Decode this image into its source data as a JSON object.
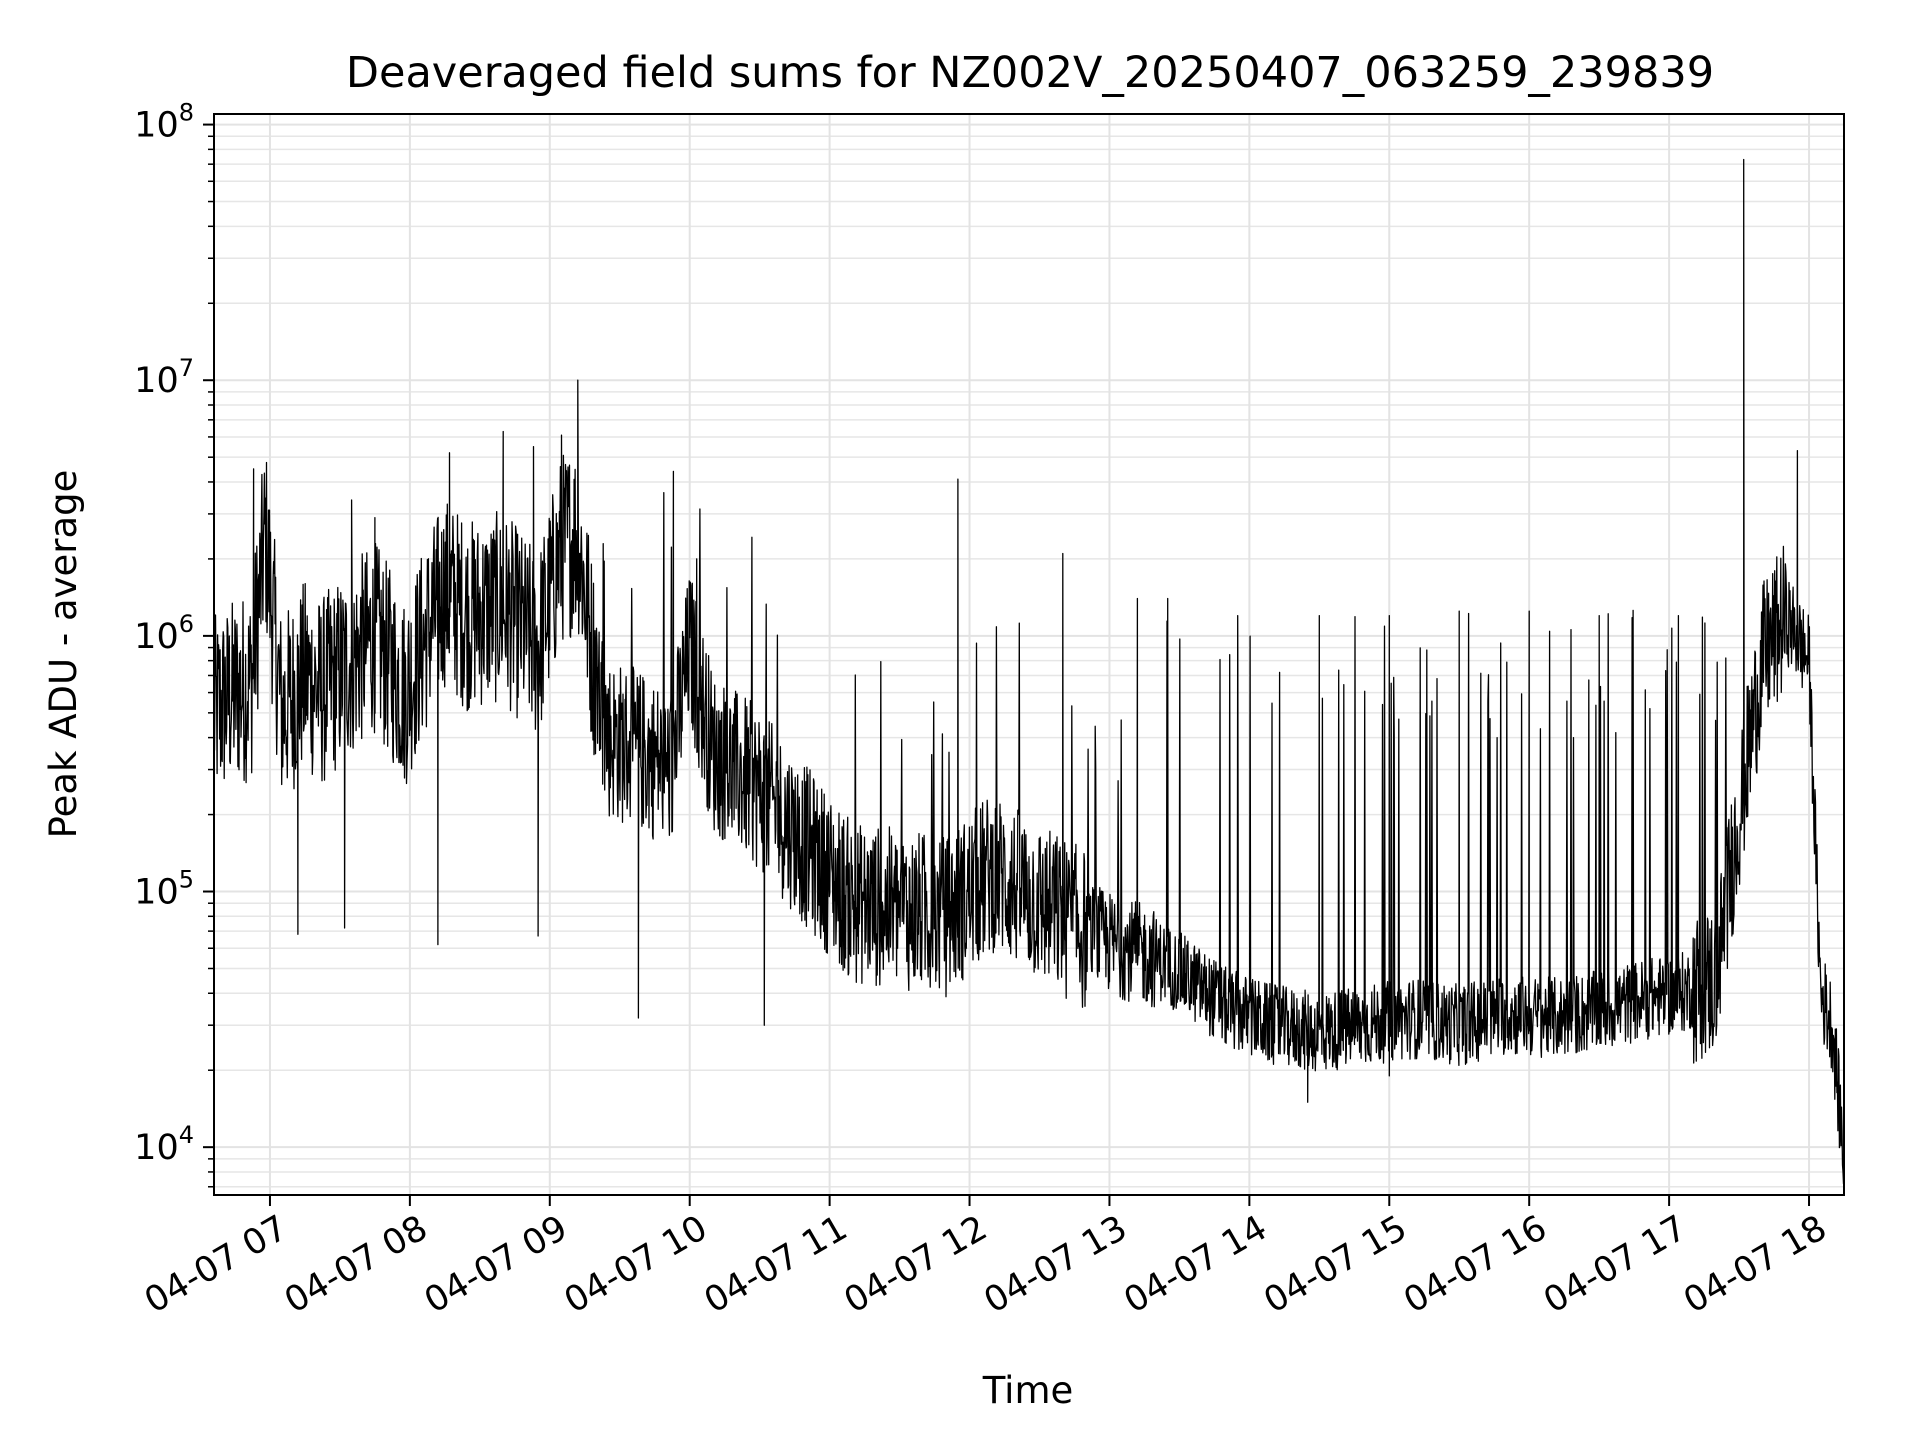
{
  "chart_data": {
    "type": "line",
    "title": "Deaveraged field sums for NZ002V_20250407_063259_239839",
    "xlabel": "Time",
    "ylabel": "Peak ADU - average",
    "xlim": [
      "04-07 06:36",
      "04-07 18:15"
    ],
    "ylim": [
      6500,
      110000000
    ],
    "yscale": "log",
    "grid": true,
    "line_color": "#000000",
    "x_ticks": [
      "04-07 07",
      "04-07 08",
      "04-07 09",
      "04-07 10",
      "04-07 11",
      "04-07 12",
      "04-07 13",
      "04-07 14",
      "04-07 15",
      "04-07 16",
      "04-07 17",
      "04-07 18"
    ],
    "y_ticks": [
      {
        "base": "10",
        "exp": "4",
        "value": 10000
      },
      {
        "base": "10",
        "exp": "5",
        "value": 100000
      },
      {
        "base": "10",
        "exp": "6",
        "value": 1000000
      },
      {
        "base": "10",
        "exp": "7",
        "value": 10000000
      },
      {
        "base": "10",
        "exp": "8",
        "value": 100000000
      }
    ],
    "series": [
      {
        "x": [
          "04-07 06:36",
          "04-07 06:45",
          "04-07 06:52",
          "04-07 06:58",
          "04-07 07:05",
          "04-07 07:15",
          "04-07 07:22",
          "04-07 07:35",
          "04-07 07:45",
          "04-07 07:58",
          "04-07 08:05",
          "04-07 08:15",
          "04-07 08:25",
          "04-07 08:40",
          "04-07 08:55",
          "04-07 09:05",
          "04-07 09:12",
          "04-07 09:18",
          "04-07 09:25",
          "04-07 09:40",
          "04-07 09:52",
          "04-07 10:00",
          "04-07 10:10",
          "04-07 10:30",
          "04-07 10:50",
          "04-07 11:10",
          "04-07 11:30",
          "04-07 11:50",
          "04-07 12:10",
          "04-07 12:30",
          "04-07 12:50",
          "04-07 13:05",
          "04-07 13:20",
          "04-07 13:35",
          "04-07 13:50",
          "04-07 14:10",
          "04-07 14:30",
          "04-07 14:50",
          "04-07 15:10",
          "04-07 15:30",
          "04-07 15:50",
          "04-07 16:10",
          "04-07 16:30",
          "04-07 16:50",
          "04-07 17:05",
          "04-07 17:20",
          "04-07 17:30",
          "04-07 17:40",
          "04-07 17:50",
          "04-07 18:00",
          "04-07 18:05",
          "04-07 18:10",
          "04-07 18:15"
        ],
        "values": [
          500000,
          600000,
          650000,
          2500000,
          500000,
          700000,
          600000,
          800000,
          1000000,
          600000,
          900000,
          1500000,
          1200000,
          1300000,
          900000,
          2200000,
          2500000,
          900000,
          400000,
          350000,
          300000,
          900000,
          350000,
          250000,
          150000,
          90000,
          85000,
          80000,
          120000,
          90000,
          70000,
          60000,
          55000,
          45000,
          35000,
          30000,
          28000,
          30000,
          32000,
          30000,
          33000,
          32000,
          34000,
          38000,
          40000,
          45000,
          200000,
          800000,
          1200000,
          800000,
          40000,
          30000,
          9000
        ]
      }
    ],
    "spikes": [
      {
        "x": "04-07 06:53",
        "y": 4500000
      },
      {
        "x": "04-07 07:35",
        "y": 3400000
      },
      {
        "x": "04-07 07:45",
        "y": 2900000
      },
      {
        "x": "04-07 08:17",
        "y": 5200000
      },
      {
        "x": "04-07 08:40",
        "y": 6300000
      },
      {
        "x": "04-07 08:53",
        "y": 5500000
      },
      {
        "x": "04-07 09:05",
        "y": 6100000
      },
      {
        "x": "04-07 09:12",
        "y": 10000000
      },
      {
        "x": "04-07 09:53",
        "y": 4400000
      },
      {
        "x": "04-07 10:03",
        "y": 2000000
      },
      {
        "x": "04-07 11:55",
        "y": 4100000
      },
      {
        "x": "04-07 12:40",
        "y": 2100000
      },
      {
        "x": "04-07 13:12",
        "y": 1400000
      },
      {
        "x": "04-07 13:25",
        "y": 1400000
      },
      {
        "x": "04-07 13:55",
        "y": 1200000
      },
      {
        "x": "04-07 14:30",
        "y": 1200000
      },
      {
        "x": "04-07 15:00",
        "y": 1200000
      },
      {
        "x": "04-07 15:30",
        "y": 1250000
      },
      {
        "x": "04-07 16:00",
        "y": 1250000
      },
      {
        "x": "04-07 16:30",
        "y": 1200000
      },
      {
        "x": "04-07 17:04",
        "y": 1200000
      },
      {
        "x": "04-07 17:32",
        "y": 73000000
      },
      {
        "x": "04-07 17:55",
        "y": 5300000
      }
    ],
    "dips": [
      {
        "x": "04-07 07:12",
        "y": 68000
      },
      {
        "x": "04-07 07:32",
        "y": 72000
      },
      {
        "x": "04-07 08:12",
        "y": 62000
      },
      {
        "x": "04-07 08:55",
        "y": 67000
      },
      {
        "x": "04-07 09:38",
        "y": 32000
      },
      {
        "x": "04-07 10:32",
        "y": 30000
      },
      {
        "x": "04-07 14:25",
        "y": 15000
      },
      {
        "x": "04-07 15:00",
        "y": 19000
      },
      {
        "x": "04-07 18:15",
        "y": 8000
      }
    ]
  }
}
